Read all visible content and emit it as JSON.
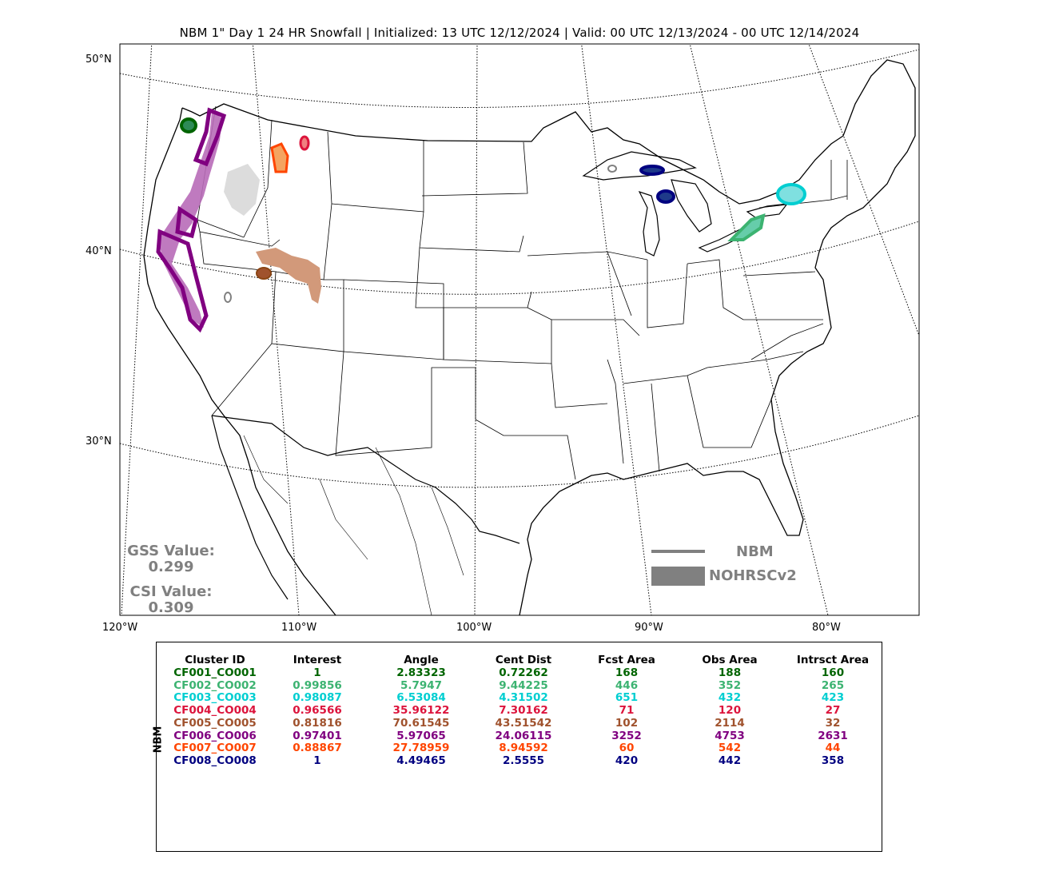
{
  "title": "NBM 1\" Day 1 24 HR Snowfall | Initialized: 13 UTC 12/12/2024 | Valid: 00 UTC 12/13/2024 - 00 UTC 12/14/2024",
  "lat_labels": [
    "50°N",
    "40°N",
    "30°N"
  ],
  "lon_labels": [
    "120°W",
    "110°W",
    "100°W",
    "90°W",
    "80°W"
  ],
  "stats": {
    "gss_label": "GSS Value:",
    "gss_value": "0.299",
    "csi_label": "CSI Value:",
    "csi_value": "0.309"
  },
  "legend": {
    "nbm": "NBM",
    "obs": "NOHRSCv2",
    "color": "#808080"
  },
  "table": {
    "row_label": "NBM",
    "headers": [
      "Cluster ID",
      "Interest",
      "Angle",
      "Cent Dist",
      "Fcst Area",
      "Obs Area",
      "Intrsct Area"
    ],
    "rows": [
      {
        "color": "#006400",
        "cells": [
          "CF001_CO001",
          "1",
          "2.83323",
          "0.72262",
          "168",
          "188",
          "160"
        ]
      },
      {
        "color": "#3cb371",
        "cells": [
          "CF002_CO002",
          "0.99856",
          "5.7947",
          "9.44225",
          "446",
          "352",
          "265"
        ]
      },
      {
        "color": "#00ced1",
        "cells": [
          "CF003_CO003",
          "0.98087",
          "6.53084",
          "4.31502",
          "651",
          "432",
          "423"
        ]
      },
      {
        "color": "#dc143c",
        "cells": [
          "CF004_CO004",
          "0.96566",
          "35.96122",
          "7.30162",
          "71",
          "120",
          "27"
        ]
      },
      {
        "color": "#a0522d",
        "cells": [
          "CF005_CO005",
          "0.81816",
          "70.61545",
          "43.51542",
          "102",
          "2114",
          "32"
        ]
      },
      {
        "color": "#800080",
        "cells": [
          "CF006_CO006",
          "0.97401",
          "5.97065",
          "24.06115",
          "3252",
          "4753",
          "2631"
        ]
      },
      {
        "color": "#ff4500",
        "cells": [
          "CF007_CO007",
          "0.88867",
          "27.78959",
          "8.94592",
          "60",
          "542",
          "44"
        ]
      },
      {
        "color": "#000080",
        "cells": [
          "CF008_CO008",
          "1",
          "4.49465",
          "2.5555",
          "420",
          "442",
          "358"
        ]
      }
    ]
  }
}
